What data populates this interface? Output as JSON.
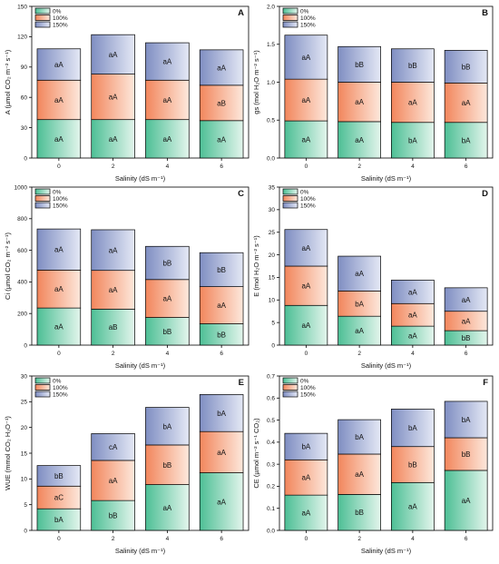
{
  "gradient_colors": {
    "0%": [
      "#4dbf95",
      "#e3f5ec"
    ],
    "100%": [
      "#f2865c",
      "#fde8dc"
    ],
    "150%": [
      "#7f8ec2",
      "#e4e8f5"
    ]
  },
  "chart_data": [
    {
      "type": "bar",
      "stacked": true,
      "panel": "A",
      "categories": [
        "0",
        "2",
        "4",
        "6"
      ],
      "xlabel": "Salinity (dS m⁻¹)",
      "ylabel": "A (µmol CO₂ m⁻² s⁻¹)",
      "ylim": [
        0,
        150
      ],
      "yticks": [
        0,
        30,
        60,
        90,
        120,
        150
      ],
      "series": [
        {
          "name": "0%",
          "values": [
            38,
            38,
            38,
            37
          ],
          "labels": [
            "aA",
            "aA",
            "aA",
            "aA"
          ]
        },
        {
          "name": "100%",
          "values": [
            39,
            45,
            39,
            35
          ],
          "labels": [
            "aA",
            "aA",
            "aA",
            "aB"
          ]
        },
        {
          "name": "150%",
          "values": [
            31,
            39,
            37,
            35
          ],
          "labels": [
            "aA",
            "aA",
            "aA",
            "aA"
          ]
        }
      ]
    },
    {
      "type": "bar",
      "stacked": true,
      "panel": "B",
      "categories": [
        "0",
        "2",
        "4",
        "6"
      ],
      "xlabel": "Salinity (dS m⁻¹)",
      "ylabel": "gs (mol H₂O m⁻² s⁻¹)",
      "ylim": [
        0,
        2.0
      ],
      "yticks": [
        0.0,
        0.5,
        1.0,
        1.5,
        2.0
      ],
      "series": [
        {
          "name": "0%",
          "values": [
            0.49,
            0.48,
            0.47,
            0.47
          ],
          "labels": [
            "aA",
            "aA",
            "bA",
            "bA"
          ]
        },
        {
          "name": "100%",
          "values": [
            0.55,
            0.52,
            0.53,
            0.52
          ],
          "labels": [
            "aA",
            "aA",
            "aA",
            "aA"
          ]
        },
        {
          "name": "150%",
          "values": [
            0.58,
            0.47,
            0.44,
            0.43
          ],
          "labels": [
            "aA",
            "bB",
            "bB",
            "bB"
          ]
        }
      ]
    },
    {
      "type": "bar",
      "stacked": true,
      "panel": "C",
      "categories": [
        "0",
        "2",
        "4",
        "6"
      ],
      "xlabel": "Salinity (dS m⁻¹)",
      "ylabel": "Ci (µmol CO₂ m⁻² s⁻¹)",
      "ylim": [
        0,
        1000
      ],
      "yticks": [
        0,
        200,
        400,
        600,
        800,
        1000
      ],
      "series": [
        {
          "name": "0%",
          "values": [
            235,
            228,
            175,
            135
          ],
          "labels": [
            "aA",
            "aB",
            "bB",
            "bB"
          ]
        },
        {
          "name": "100%",
          "values": [
            240,
            245,
            240,
            235
          ],
          "labels": [
            "aA",
            "aA",
            "aA",
            "aA"
          ]
        },
        {
          "name": "150%",
          "values": [
            260,
            257,
            210,
            215
          ],
          "labels": [
            "aA",
            "aA",
            "bB",
            "bB"
          ]
        }
      ]
    },
    {
      "type": "bar",
      "stacked": true,
      "panel": "D",
      "categories": [
        "0",
        "2",
        "4",
        "6"
      ],
      "xlabel": "Salinity (dS m⁻¹)",
      "ylabel": "E (mol H₂O m⁻² s⁻¹)",
      "ylim": [
        0,
        35
      ],
      "yticks": [
        0,
        5,
        10,
        15,
        20,
        25,
        30,
        35
      ],
      "series": [
        {
          "name": "0%",
          "values": [
            8.8,
            6.4,
            4.2,
            3.2
          ],
          "labels": [
            "aA",
            "aA",
            "aA",
            "bB"
          ]
        },
        {
          "name": "100%",
          "values": [
            8.7,
            5.6,
            5.0,
            4.3
          ],
          "labels": [
            "aA",
            "bA",
            "aA",
            "aA"
          ]
        },
        {
          "name": "150%",
          "values": [
            8.1,
            7.7,
            5.2,
            5.2
          ],
          "labels": [
            "aA",
            "aA",
            "aA",
            "aA"
          ]
        }
      ]
    },
    {
      "type": "bar",
      "stacked": true,
      "panel": "E",
      "categories": [
        "0",
        "2",
        "4",
        "6"
      ],
      "xlabel": "Salinity (dS m⁻¹)",
      "ylabel": "WUE (mmol CO₂ H₂O⁻¹)",
      "ylim": [
        0,
        30
      ],
      "yticks": [
        0,
        5,
        10,
        15,
        20,
        25,
        30
      ],
      "series": [
        {
          "name": "0%",
          "values": [
            4.2,
            5.8,
            8.9,
            11.2
          ],
          "labels": [
            "bA",
            "bB",
            "aA",
            "aA"
          ]
        },
        {
          "name": "100%",
          "values": [
            4.4,
            7.8,
            7.7,
            8.0
          ],
          "labels": [
            "aC",
            "aA",
            "bB",
            "aA"
          ]
        },
        {
          "name": "150%",
          "values": [
            4.0,
            5.2,
            7.3,
            7.2
          ],
          "labels": [
            "bB",
            "cA",
            "bA",
            "bA"
          ]
        }
      ]
    },
    {
      "type": "bar",
      "stacked": true,
      "panel": "F",
      "categories": [
        "0",
        "2",
        "4",
        "6"
      ],
      "xlabel": "Salinity (dS m⁻¹)",
      "ylabel": "CE (µmol m⁻² s⁻¹ CO₂)",
      "ylim": [
        0,
        0.7
      ],
      "yticks": [
        0.0,
        0.1,
        0.2,
        0.3,
        0.4,
        0.5,
        0.6,
        0.7
      ],
      "series": [
        {
          "name": "0%",
          "values": [
            0.16,
            0.163,
            0.217,
            0.272
          ],
          "labels": [
            "aA",
            "bB",
            "aA",
            "aA"
          ]
        },
        {
          "name": "100%",
          "values": [
            0.16,
            0.183,
            0.163,
            0.148
          ],
          "labels": [
            "aA",
            "aA",
            "bB",
            "bB"
          ]
        },
        {
          "name": "150%",
          "values": [
            0.12,
            0.156,
            0.17,
            0.165
          ],
          "labels": [
            "bA",
            "bA",
            "bA",
            "bA"
          ]
        }
      ]
    }
  ]
}
